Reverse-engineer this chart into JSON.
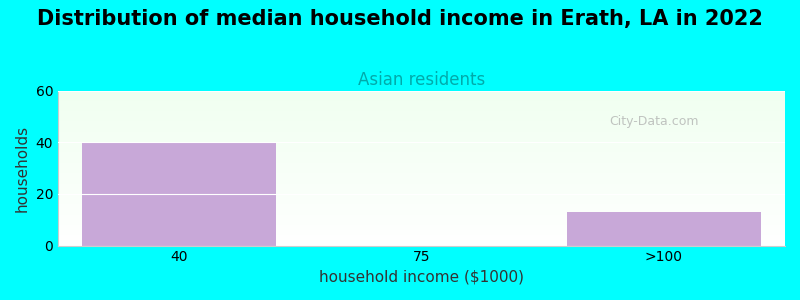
{
  "title": "Distribution of median household income in Erath, LA in 2022",
  "subtitle": "Asian residents",
  "xlabel": "household income ($1000)",
  "ylabel": "households",
  "categories": [
    "40",
    "75",
    ">100"
  ],
  "values": [
    40,
    0,
    13
  ],
  "bar_color": "#c8a8d8",
  "background_color": "#00FFFF",
  "ylim": [
    0,
    60
  ],
  "yticks": [
    0,
    20,
    40,
    60
  ],
  "title_fontsize": 15,
  "subtitle_fontsize": 12,
  "subtitle_color": "#00AAAA",
  "axis_label_fontsize": 11,
  "watermark_text": "City-Data.com",
  "watermark_color": "#aaaaaa"
}
